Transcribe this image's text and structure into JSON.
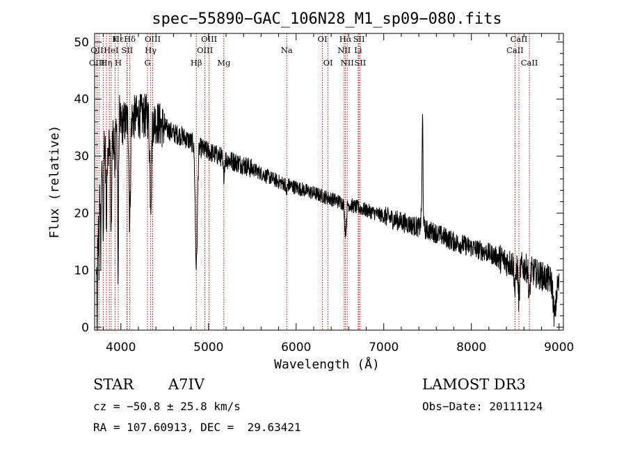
{
  "chart_data": {
    "type": "line",
    "title": "spec−55890−GAC_106N28_M1_sp09−080.fits",
    "xlabel": "Wavelength (Å)",
    "ylabel": "Flux (relative)",
    "xlim": [
      3700,
      9050
    ],
    "ylim": [
      -0.5,
      51.5
    ],
    "xticks": [
      4000,
      5000,
      6000,
      7000,
      8000,
      9000
    ],
    "yticks": [
      0,
      10,
      20,
      30,
      40,
      50
    ],
    "continuum": [
      [
        3720,
        8
      ],
      [
        3760,
        24
      ],
      [
        3800,
        30
      ],
      [
        3850,
        32
      ],
      [
        3900,
        33
      ],
      [
        4000,
        35.5
      ],
      [
        4100,
        36.5
      ],
      [
        4200,
        37
      ],
      [
        4300,
        37
      ],
      [
        4400,
        36
      ],
      [
        4500,
        35
      ],
      [
        4600,
        34
      ],
      [
        4700,
        33.5
      ],
      [
        4800,
        32.5
      ],
      [
        4900,
        31.5
      ],
      [
        5000,
        30.8
      ],
      [
        5200,
        29.5
      ],
      [
        5400,
        28.5
      ],
      [
        5600,
        27
      ],
      [
        5800,
        25.5
      ],
      [
        6000,
        24.5
      ],
      [
        6200,
        23.5
      ],
      [
        6400,
        22.5
      ],
      [
        6600,
        21.5
      ],
      [
        6800,
        20.5
      ],
      [
        7000,
        19.5
      ],
      [
        7200,
        18.5
      ],
      [
        7400,
        17.5
      ],
      [
        7600,
        16.5
      ],
      [
        7800,
        15
      ],
      [
        8000,
        14
      ],
      [
        8200,
        13
      ],
      [
        8400,
        11.5
      ],
      [
        8600,
        10.5
      ],
      [
        8800,
        9
      ],
      [
        9000,
        7.5
      ]
    ],
    "absorption_features": [
      [
        3730,
        2,
        20
      ],
      [
        3750,
        3,
        10
      ],
      [
        3770,
        4,
        15
      ],
      [
        3800,
        5,
        12
      ],
      [
        3835,
        5,
        14
      ],
      [
        3889,
        6,
        16
      ],
      [
        3933,
        4,
        8
      ],
      [
        3968,
        5,
        26
      ],
      [
        4101,
        8,
        18
      ],
      [
        4340,
        10,
        14
      ],
      [
        4861,
        12,
        21
      ],
      [
        5172,
        8,
        3
      ],
      [
        5890,
        6,
        2
      ],
      [
        6563,
        10,
        5
      ],
      [
        8498,
        8,
        5
      ],
      [
        8542,
        8,
        6
      ],
      [
        8662,
        8,
        5
      ],
      [
        8950,
        15,
        6
      ]
    ],
    "emission_features": [
      [
        7443,
        5,
        16
      ],
      [
        7438,
        10,
        4
      ]
    ],
    "lines": [
      {
        "label": "Hε",
        "wavelength": 3970,
        "row": 1
      },
      {
        "label": "K",
        "wavelength": 3934,
        "row": 1
      },
      {
        "label": "Hδ",
        "wavelength": 4102,
        "row": 1
      },
      {
        "label": "OIII",
        "wavelength": 4363,
        "row": 1
      },
      {
        "label": "OIII",
        "wavelength": 5007,
        "row": 1
      },
      {
        "label": "OI",
        "wavelength": 6300,
        "row": 1
      },
      {
        "label": "Hα",
        "wavelength": 6563,
        "row": 1
      },
      {
        "label": "SII",
        "wavelength": 6717,
        "row": 1
      },
      {
        "label": "CaII",
        "wavelength": 8542,
        "row": 1
      },
      {
        "label": "OII",
        "wavelength": 3727,
        "row": 2
      },
      {
        "label": "HeI",
        "wavelength": 3889,
        "row": 2
      },
      {
        "label": "SII",
        "wavelength": 4072,
        "row": 2
      },
      {
        "label": "Hγ",
        "wavelength": 4340,
        "row": 2
      },
      {
        "label": "OIII",
        "wavelength": 4959,
        "row": 2
      },
      {
        "label": "Na",
        "wavelength": 5893,
        "row": 2
      },
      {
        "label": "NII",
        "wavelength": 6548,
        "row": 2
      },
      {
        "label": "Li",
        "wavelength": 6708,
        "row": 2
      },
      {
        "label": "CaII",
        "wavelength": 8498,
        "row": 2
      },
      {
        "label": "OIII",
        "wavelength": 3727,
        "row": 3
      },
      {
        "label": "Hη",
        "wavelength": 3835,
        "row": 3
      },
      {
        "label": "H",
        "wavelength": 3970,
        "row": 3
      },
      {
        "label": "G",
        "wavelength": 4304,
        "row": 3
      },
      {
        "label": "Hβ",
        "wavelength": 4861,
        "row": 3
      },
      {
        "label": "Mg",
        "wavelength": 5175,
        "row": 3
      },
      {
        "label": "OI",
        "wavelength": 6364,
        "row": 3
      },
      {
        "label": "NII",
        "wavelength": 6583,
        "row": 3
      },
      {
        "label": "SII",
        "wavelength": 6731,
        "row": 3
      },
      {
        "label": "CaII",
        "wavelength": 8662,
        "row": 3
      }
    ],
    "extra_marker_lines": [
      3798,
      3750,
      3868,
      4069
    ]
  },
  "info": {
    "class": "STAR",
    "subclass": "A7IV",
    "survey": "LAMOST DR3",
    "cz": "cz = −50.8 ± 25.8 km/s",
    "obs_date": "Obs−Date: 20111124",
    "coords": "RA = 107.60913, DEC =  29.63421"
  },
  "colors": {
    "line": "#000000",
    "marker": "#cc0000",
    "background": "#ffffff"
  }
}
